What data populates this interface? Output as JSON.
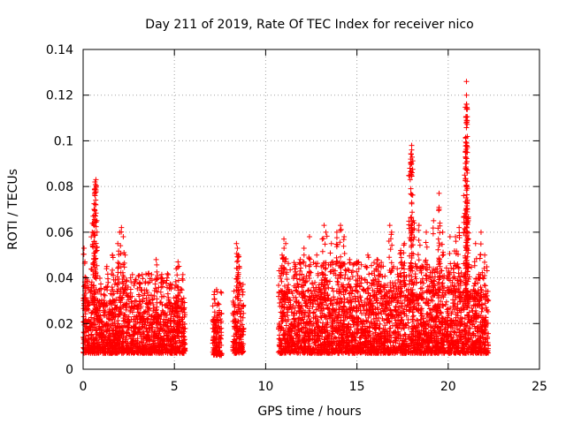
{
  "chart_data": {
    "type": "scatter",
    "title": "Day 211 of 2019, Rate Of TEC Index for receiver nico",
    "xlabel": "GPS time / hours",
    "ylabel": "ROTI / TECUs",
    "xlim": [
      0,
      25
    ],
    "ylim": [
      0,
      0.14
    ],
    "grid": true,
    "marker": "+",
    "x_ticks": [
      0,
      5,
      10,
      15,
      20,
      25
    ],
    "x_tick_labels": [
      "0",
      "5",
      "10",
      "15",
      "20",
      "25"
    ],
    "y_ticks": [
      0,
      0.02,
      0.04,
      0.06,
      0.08,
      0.1,
      0.12,
      0.14
    ],
    "y_tick_labels": [
      "0",
      "0.02",
      "0.04",
      "0.06",
      "0.08",
      "0.1",
      "0.12",
      "0.14"
    ],
    "series": [
      {
        "name": "ROTI",
        "color": "#ff0000",
        "segments": [
          {
            "x_range": [
              0.0,
              5.6
            ],
            "y_range": [
              0.007,
              0.03
            ]
          },
          {
            "x_range": [
              7.1,
              7.6
            ],
            "y_range": [
              0.006,
              0.024
            ]
          },
          {
            "x_range": [
              8.2,
              8.8
            ],
            "y_range": [
              0.007,
              0.03
            ]
          },
          {
            "x_range": [
              10.7,
              22.2
            ],
            "y_range": [
              0.007,
              0.035
            ]
          }
        ],
        "spikes": [
          {
            "x": 0.05,
            "y": 0.053
          },
          {
            "x": 0.1,
            "y": 0.047
          },
          {
            "x": 0.15,
            "y": 0.04
          },
          {
            "x": 0.5,
            "y": 0.06
          },
          {
            "x": 0.55,
            "y": 0.067
          },
          {
            "x": 0.6,
            "y": 0.07
          },
          {
            "x": 0.65,
            "y": 0.076
          },
          {
            "x": 0.65,
            "y": 0.079
          },
          {
            "x": 0.65,
            "y": 0.082
          },
          {
            "x": 0.7,
            "y": 0.083
          },
          {
            "x": 0.75,
            "y": 0.065
          },
          {
            "x": 1.3,
            "y": 0.045
          },
          {
            "x": 1.6,
            "y": 0.05
          },
          {
            "x": 1.9,
            "y": 0.055
          },
          {
            "x": 2.0,
            "y": 0.06
          },
          {
            "x": 2.1,
            "y": 0.062
          },
          {
            "x": 2.2,
            "y": 0.058
          },
          {
            "x": 2.3,
            "y": 0.05
          },
          {
            "x": 2.6,
            "y": 0.04
          },
          {
            "x": 3.1,
            "y": 0.038
          },
          {
            "x": 3.6,
            "y": 0.042
          },
          {
            "x": 4.0,
            "y": 0.048
          },
          {
            "x": 4.3,
            "y": 0.038
          },
          {
            "x": 4.6,
            "y": 0.04
          },
          {
            "x": 5.1,
            "y": 0.044
          },
          {
            "x": 5.2,
            "y": 0.047
          },
          {
            "x": 7.2,
            "y": 0.034
          },
          {
            "x": 8.4,
            "y": 0.055
          },
          {
            "x": 8.45,
            "y": 0.053
          },
          {
            "x": 8.5,
            "y": 0.05
          },
          {
            "x": 8.55,
            "y": 0.045
          },
          {
            "x": 10.9,
            "y": 0.05
          },
          {
            "x": 11.0,
            "y": 0.057
          },
          {
            "x": 11.1,
            "y": 0.055
          },
          {
            "x": 11.6,
            "y": 0.045
          },
          {
            "x": 11.9,
            "y": 0.048
          },
          {
            "x": 12.1,
            "y": 0.053
          },
          {
            "x": 12.4,
            "y": 0.058
          },
          {
            "x": 12.8,
            "y": 0.05
          },
          {
            "x": 13.1,
            "y": 0.057
          },
          {
            "x": 13.2,
            "y": 0.063
          },
          {
            "x": 13.3,
            "y": 0.06
          },
          {
            "x": 13.6,
            "y": 0.055
          },
          {
            "x": 13.9,
            "y": 0.06
          },
          {
            "x": 14.1,
            "y": 0.063
          },
          {
            "x": 14.3,
            "y": 0.058
          },
          {
            "x": 14.6,
            "y": 0.048
          },
          {
            "x": 15.0,
            "y": 0.047
          },
          {
            "x": 15.6,
            "y": 0.05
          },
          {
            "x": 16.1,
            "y": 0.048
          },
          {
            "x": 16.8,
            "y": 0.063
          },
          {
            "x": 16.9,
            "y": 0.06
          },
          {
            "x": 17.4,
            "y": 0.052
          },
          {
            "x": 17.6,
            "y": 0.055
          },
          {
            "x": 17.9,
            "y": 0.088
          },
          {
            "x": 17.95,
            "y": 0.092
          },
          {
            "x": 18.0,
            "y": 0.096
          },
          {
            "x": 18.0,
            "y": 0.098
          },
          {
            "x": 18.0,
            "y": 0.073
          },
          {
            "x": 18.1,
            "y": 0.065
          },
          {
            "x": 18.4,
            "y": 0.063
          },
          {
            "x": 18.8,
            "y": 0.06
          },
          {
            "x": 19.2,
            "y": 0.065
          },
          {
            "x": 19.5,
            "y": 0.07
          },
          {
            "x": 19.5,
            "y": 0.077
          },
          {
            "x": 19.7,
            "y": 0.06
          },
          {
            "x": 20.1,
            "y": 0.058
          },
          {
            "x": 20.4,
            "y": 0.058
          },
          {
            "x": 20.6,
            "y": 0.062
          },
          {
            "x": 20.9,
            "y": 0.085
          },
          {
            "x": 21.0,
            "y": 0.095
          },
          {
            "x": 21.0,
            "y": 0.098
          },
          {
            "x": 21.0,
            "y": 0.109
          },
          {
            "x": 21.0,
            "y": 0.116
          },
          {
            "x": 21.0,
            "y": 0.12
          },
          {
            "x": 21.0,
            "y": 0.126
          },
          {
            "x": 21.05,
            "y": 0.087
          },
          {
            "x": 21.05,
            "y": 0.07
          },
          {
            "x": 21.1,
            "y": 0.065
          },
          {
            "x": 21.5,
            "y": 0.055
          },
          {
            "x": 21.8,
            "y": 0.06
          },
          {
            "x": 22.0,
            "y": 0.05
          }
        ]
      }
    ]
  }
}
